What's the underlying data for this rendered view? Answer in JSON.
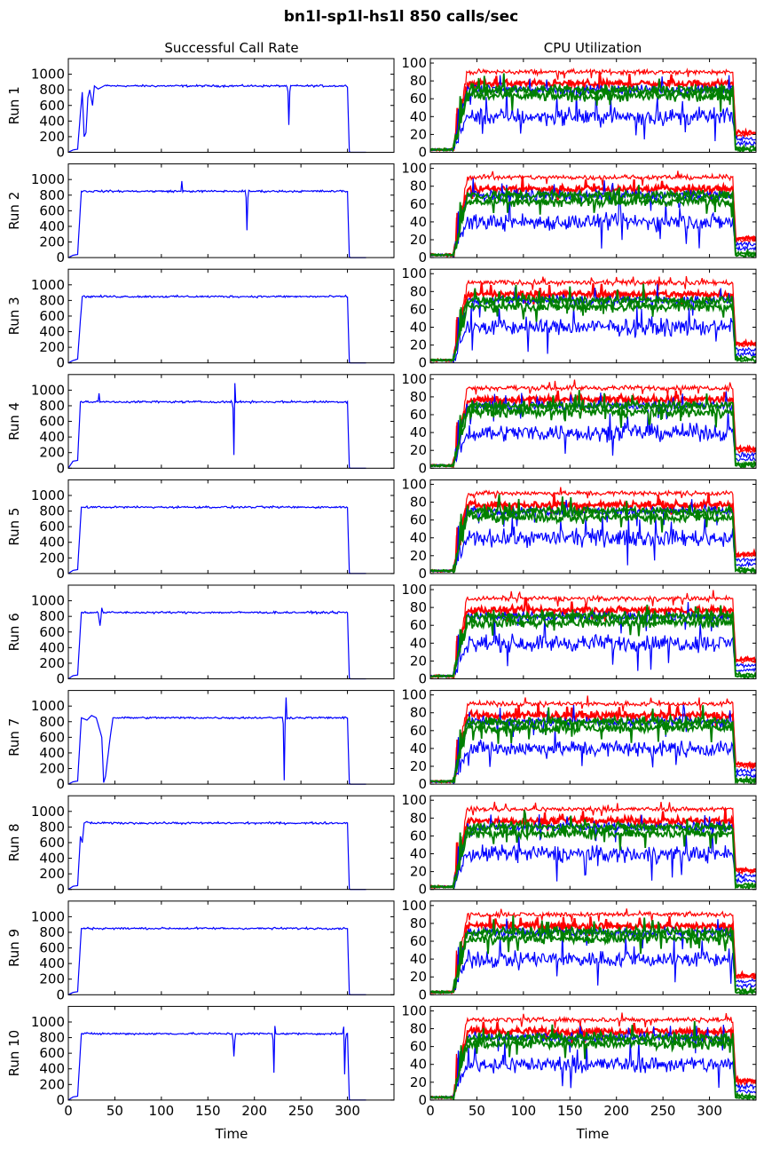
{
  "figure": {
    "title": "bn1l-sp1l-hs1l 850 calls/sec",
    "columns": [
      "Successful Call Rate",
      "CPU Utilization"
    ],
    "xlabel": "Time",
    "rows": [
      "Run 1",
      "Run 2",
      "Run 3",
      "Run 4",
      "Run 5",
      "Run 6",
      "Run 7",
      "Run 8",
      "Run 9",
      "Run 10"
    ]
  },
  "chart_data": [
    {
      "type": "line",
      "title": "Successful Call Rate",
      "xlabel": "Time",
      "xlim": [
        0,
        350
      ],
      "ylim": [
        0,
        1200
      ],
      "xticks": [
        0,
        50,
        100,
        150,
        200,
        250,
        300
      ],
      "yticks": [
        0,
        200,
        400,
        600,
        800,
        1000
      ],
      "color": "#0000ff",
      "steady_value": 850,
      "runs": [
        {
          "label": "Run 1",
          "start": 15,
          "end": 300,
          "rise": [
            [
              0,
              0
            ],
            [
              5,
              30
            ],
            [
              10,
              40
            ],
            [
              13,
              500
            ],
            [
              15,
              770
            ],
            [
              17,
              200
            ],
            [
              19,
              250
            ],
            [
              21,
              700
            ],
            [
              23,
              800
            ],
            [
              26,
              600
            ],
            [
              28,
              850
            ],
            [
              32,
              810
            ],
            [
              40,
              860
            ]
          ],
          "dips": [
            [
              237,
              350
            ]
          ],
          "spikes": []
        },
        {
          "label": "Run 2",
          "start": 14,
          "end": 300,
          "rise": [
            [
              0,
              0
            ],
            [
              5,
              30
            ],
            [
              10,
              40
            ],
            [
              14,
              850
            ]
          ],
          "dips": [
            [
              192,
              350
            ]
          ],
          "spikes": [
            [
              122,
              980
            ]
          ]
        },
        {
          "label": "Run 3",
          "start": 14,
          "end": 300,
          "rise": [
            [
              0,
              0
            ],
            [
              5,
              30
            ],
            [
              10,
              50
            ],
            [
              13,
              550
            ],
            [
              15,
              850
            ]
          ],
          "dips": [],
          "spikes": []
        },
        {
          "label": "Run 4",
          "start": 12,
          "end": 300,
          "rise": [
            [
              0,
              0
            ],
            [
              5,
              90
            ],
            [
              10,
              100
            ],
            [
              13,
              850
            ]
          ],
          "dips": [
            [
              178,
              170
            ]
          ],
          "spikes": [
            [
              179,
              1090
            ],
            [
              33,
              960
            ]
          ]
        },
        {
          "label": "Run 5",
          "start": 14,
          "end": 300,
          "rise": [
            [
              0,
              0
            ],
            [
              5,
              40
            ],
            [
              10,
              50
            ],
            [
              14,
              850
            ]
          ],
          "dips": [],
          "spikes": []
        },
        {
          "label": "Run 6",
          "start": 14,
          "end": 300,
          "rise": [
            [
              0,
              0
            ],
            [
              5,
              40
            ],
            [
              10,
              50
            ],
            [
              14,
              850
            ]
          ],
          "dips": [
            [
              34,
              680
            ]
          ],
          "spikes": [
            [
              36,
              910
            ]
          ]
        },
        {
          "label": "Run 7",
          "start": 14,
          "end": 300,
          "rise": [
            [
              0,
              0
            ],
            [
              5,
              30
            ],
            [
              10,
              40
            ],
            [
              14,
              850
            ],
            [
              20,
              820
            ],
            [
              25,
              880
            ],
            [
              30,
              850
            ],
            [
              36,
              600
            ],
            [
              38,
              20
            ],
            [
              40,
              100
            ],
            [
              45,
              600
            ],
            [
              48,
              850
            ]
          ],
          "dips": [
            [
              232,
              50
            ]
          ],
          "spikes": [
            [
              234,
              1110
            ]
          ]
        },
        {
          "label": "Run 8",
          "start": 14,
          "end": 300,
          "rise": [
            [
              0,
              0
            ],
            [
              5,
              40
            ],
            [
              10,
              50
            ],
            [
              13,
              680
            ],
            [
              15,
              600
            ],
            [
              17,
              850
            ],
            [
              20,
              870
            ]
          ],
          "dips": [],
          "spikes": []
        },
        {
          "label": "Run 9",
          "start": 14,
          "end": 300,
          "rise": [
            [
              0,
              0
            ],
            [
              5,
              30
            ],
            [
              10,
              40
            ],
            [
              14,
              850
            ]
          ],
          "dips": [],
          "spikes": []
        },
        {
          "label": "Run 10",
          "start": 14,
          "end": 300,
          "rise": [
            [
              0,
              0
            ],
            [
              5,
              40
            ],
            [
              10,
              50
            ],
            [
              14,
              850
            ]
          ],
          "dips": [
            [
              178,
              560
            ],
            [
              221,
              350
            ],
            [
              297,
              330
            ]
          ],
          "spikes": [
            [
              222,
              950
            ],
            [
              296,
              940
            ]
          ]
        }
      ]
    },
    {
      "type": "line",
      "title": "CPU Utilization",
      "xlabel": "Time",
      "xlim": [
        0,
        350
      ],
      "ylim": [
        0,
        105
      ],
      "xticks": [
        0,
        50,
        100,
        150,
        200,
        250,
        300
      ],
      "yticks": [
        0,
        20,
        40,
        60,
        80,
        100
      ],
      "start": 40,
      "end": 325,
      "series": [
        {
          "color": "#ff0000",
          "level": 90,
          "noise": 2,
          "width": 1.2,
          "tail": 20
        },
        {
          "color": "#ff0000",
          "level": 77,
          "noise": 3,
          "width": 2.2,
          "tail": 22
        },
        {
          "color": "#0000ff",
          "level": 70,
          "noise": 4,
          "width": 1.2,
          "tail": 15
        },
        {
          "color": "#0000ff",
          "level": 40,
          "noise": 7,
          "width": 1.2,
          "tail": 10
        },
        {
          "color": "#008000",
          "level": 70,
          "noise": 4,
          "width": 1.8,
          "tail": 5
        },
        {
          "color": "#008000",
          "level": 63,
          "noise": 4,
          "width": 1.8,
          "tail": 3
        }
      ]
    }
  ]
}
